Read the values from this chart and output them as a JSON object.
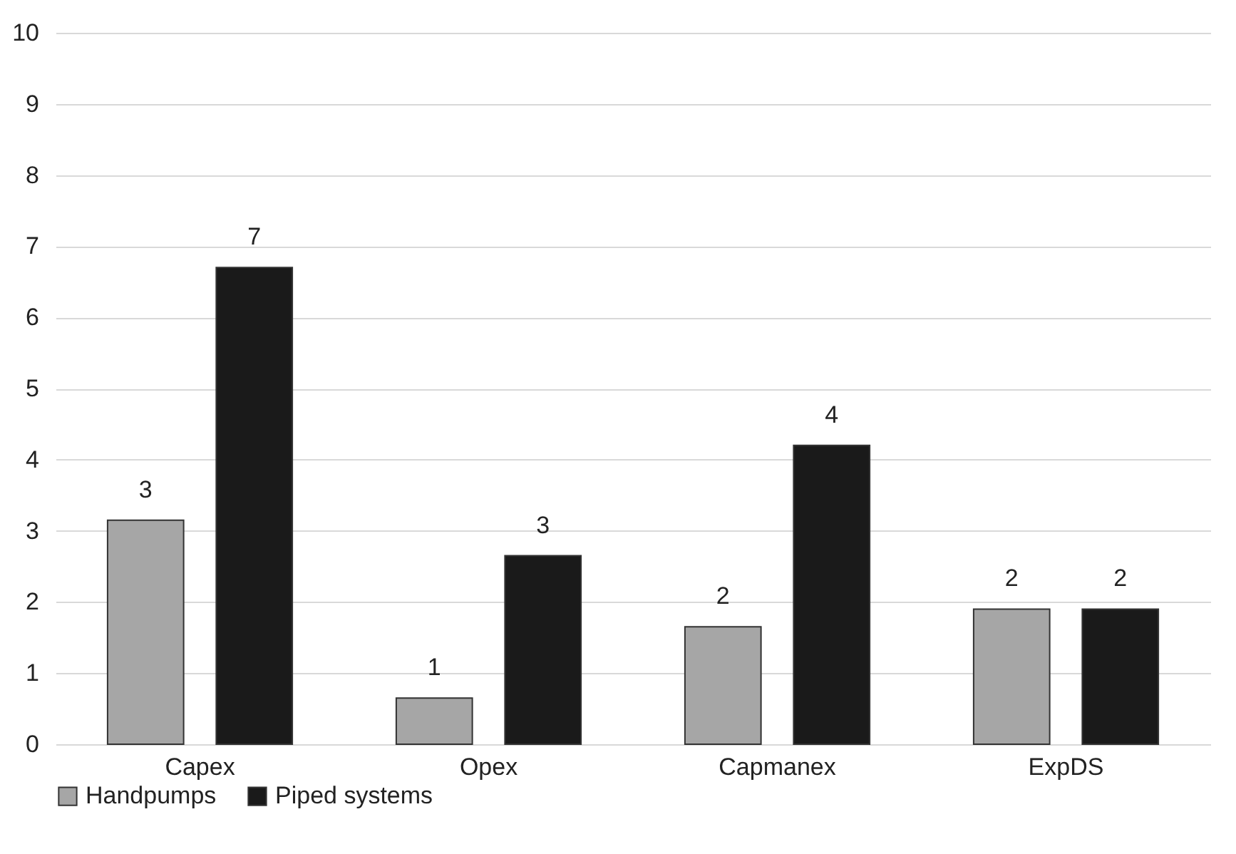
{
  "chart_data": {
    "type": "bar",
    "categories": [
      "Capex",
      "Opex",
      "Capmanex",
      "ExpDS"
    ],
    "series": [
      {
        "name": "Handpumps",
        "color": "#a6a6a6",
        "values": [
          3.15,
          0.65,
          1.65,
          1.9
        ],
        "value_labels": [
          "3",
          "1",
          "2",
          "2"
        ]
      },
      {
        "name": "Piped systems",
        "color": "#1a1a1a",
        "values": [
          6.7,
          2.65,
          4.2,
          1.9
        ],
        "value_labels": [
          "7",
          "3",
          "4",
          "2"
        ]
      }
    ],
    "ylim": [
      0,
      10
    ],
    "yticks": [
      0,
      1,
      2,
      3,
      4,
      5,
      6,
      7,
      8,
      9,
      10
    ],
    "grid": "y",
    "legend": "bottom"
  }
}
